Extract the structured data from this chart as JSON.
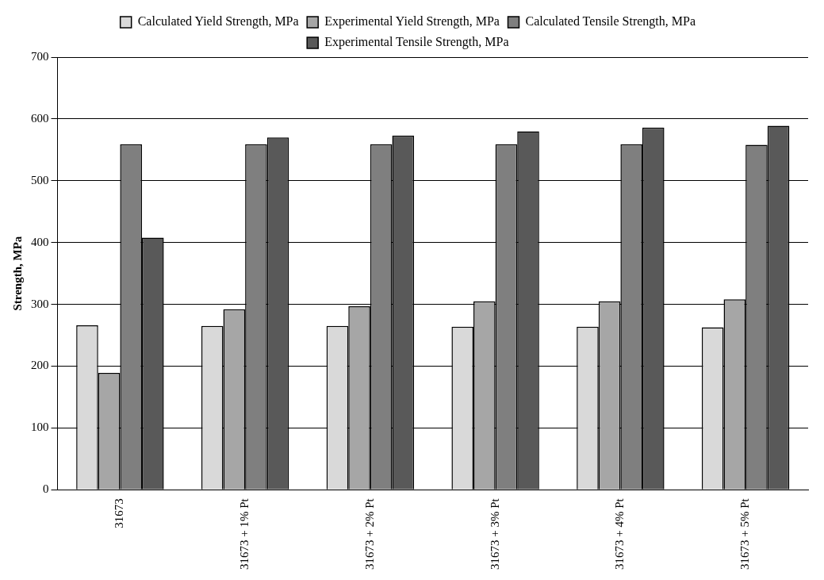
{
  "chart_data": {
    "type": "bar",
    "ylabel": "Strength, MPa",
    "categories": [
      "31673",
      "31673 + 1% Pt",
      "31673 + 2% Pt",
      "31673 + 3% Pt",
      "31673 + 4% Pt",
      "31673 + 5% Pt"
    ],
    "series": [
      {
        "name": "Calculated Yield Strength, MPa",
        "color": "#d9d9d9",
        "values": [
          266,
          265,
          265,
          264,
          264,
          263
        ]
      },
      {
        "name": "Experimental Yield Strength, MPa",
        "color": "#a6a6a6",
        "values": [
          189,
          292,
          297,
          305,
          305,
          308
        ]
      },
      {
        "name": "Calculated Tensile Strength, MPa",
        "color": "#7f7f7f",
        "values": [
          559,
          559,
          559,
          559,
          559,
          558
        ]
      },
      {
        "name": "Experimental Tensile Strength, MPa",
        "color": "#595959",
        "values": [
          408,
          570,
          573,
          580,
          586,
          589
        ]
      }
    ],
    "ylim": [
      0,
      700
    ],
    "yticks": [
      0,
      100,
      200,
      300,
      400,
      500,
      600,
      700
    ],
    "grid": "y",
    "legend": "top"
  }
}
